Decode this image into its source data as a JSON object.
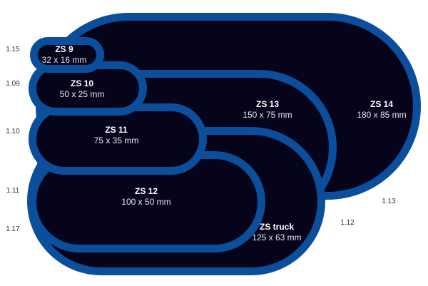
{
  "colors": {
    "border": "#0b4f9c",
    "fill": "#05041a",
    "text": "#ffffff",
    "code_text": "#333333"
  },
  "patches": [
    {
      "id": "zs14",
      "name": "ZS 14",
      "size": "180 x 85 mm",
      "code": "1.13"
    },
    {
      "id": "zs13",
      "name": "ZS 13",
      "size": "150 x 75 mm",
      "code": "1.12"
    },
    {
      "id": "zstruck",
      "name": "ZS truck",
      "size": "125 x 63 mm",
      "code": "1.17"
    },
    {
      "id": "zs12",
      "name": "ZS 12",
      "size": "100 x 50 mm",
      "code": "1.11"
    },
    {
      "id": "zs11",
      "name": "ZS 11",
      "size": "75 x 35 mm",
      "code": "1.10"
    },
    {
      "id": "zs10",
      "name": "ZS 10",
      "size": "50 x 25 mm",
      "code": "1.09"
    },
    {
      "id": "zs9",
      "name": "ZS 9",
      "size": "32 x 16 mm",
      "code": "1.15"
    }
  ]
}
